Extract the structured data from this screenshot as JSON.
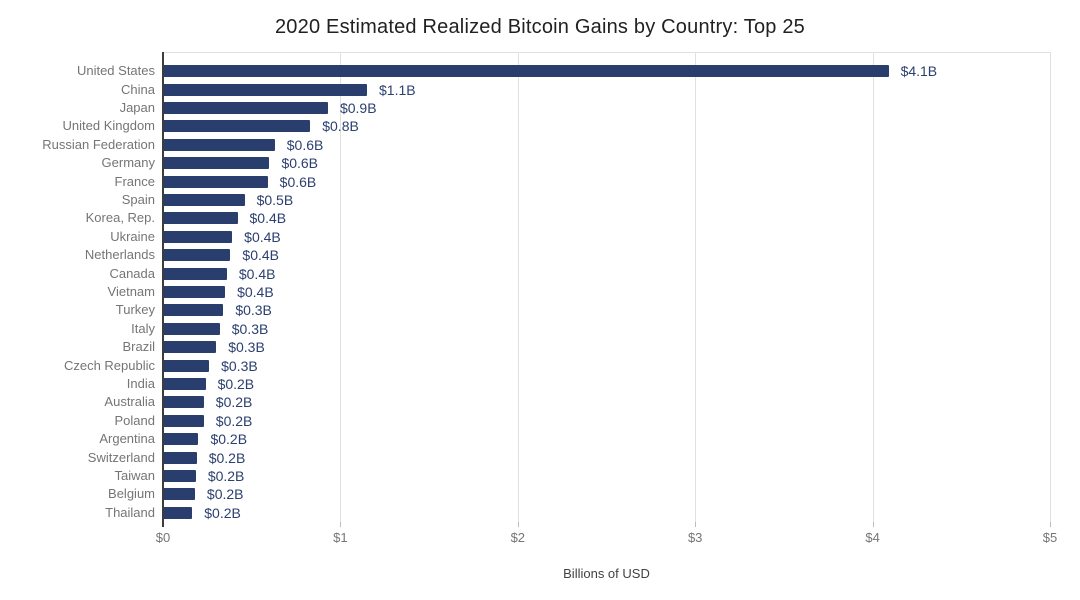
{
  "chart_data": {
    "type": "bar",
    "orientation": "horizontal",
    "title": "2020 Estimated Realized Bitcoin Gains by Country: Top 25",
    "xlabel": "Billions of USD",
    "ylabel": "",
    "xlim": [
      0,
      5
    ],
    "x_tick_labels": [
      "$0",
      "$1",
      "$2",
      "$3",
      "$4",
      "$5"
    ],
    "grid": true,
    "legend": "none",
    "categories": [
      "United States",
      "China",
      "Japan",
      "United Kingdom",
      "Russian Federation",
      "Germany",
      "France",
      "Spain",
      "Korea, Rep.",
      "Ukraine",
      "Netherlands",
      "Canada",
      "Vietnam",
      "Turkey",
      "Italy",
      "Brazil",
      "Czech Republic",
      "India",
      "Australia",
      "Poland",
      "Argentina",
      "Switzerland",
      "Taiwan",
      "Belgium",
      "Thailand"
    ],
    "values": [
      4.09,
      1.15,
      0.93,
      0.83,
      0.63,
      0.6,
      0.59,
      0.46,
      0.42,
      0.39,
      0.38,
      0.36,
      0.35,
      0.34,
      0.32,
      0.3,
      0.26,
      0.24,
      0.23,
      0.23,
      0.2,
      0.19,
      0.185,
      0.18,
      0.165
    ],
    "value_labels": [
      "$4.1B",
      "$1.1B",
      "$0.9B",
      "$0.8B",
      "$0.6B",
      "$0.6B",
      "$0.6B",
      "$0.5B",
      "$0.4B",
      "$0.4B",
      "$0.4B",
      "$0.4B",
      "$0.4B",
      "$0.3B",
      "$0.3B",
      "$0.3B",
      "$0.3B",
      "$0.2B",
      "$0.2B",
      "$0.2B",
      "$0.2B",
      "$0.2B",
      "$0.2B",
      "$0.2B",
      "$0.2B"
    ]
  },
  "colors": {
    "background": "#ffffff",
    "bar": "#2a3e6e",
    "value_label": "#2c4070",
    "category_label": "#757575",
    "tick_label": "#757575",
    "title": "#212121",
    "gridline": "#e0e0e0",
    "axis_line": "#3d3d3d",
    "x_axis_title": "#424242"
  }
}
